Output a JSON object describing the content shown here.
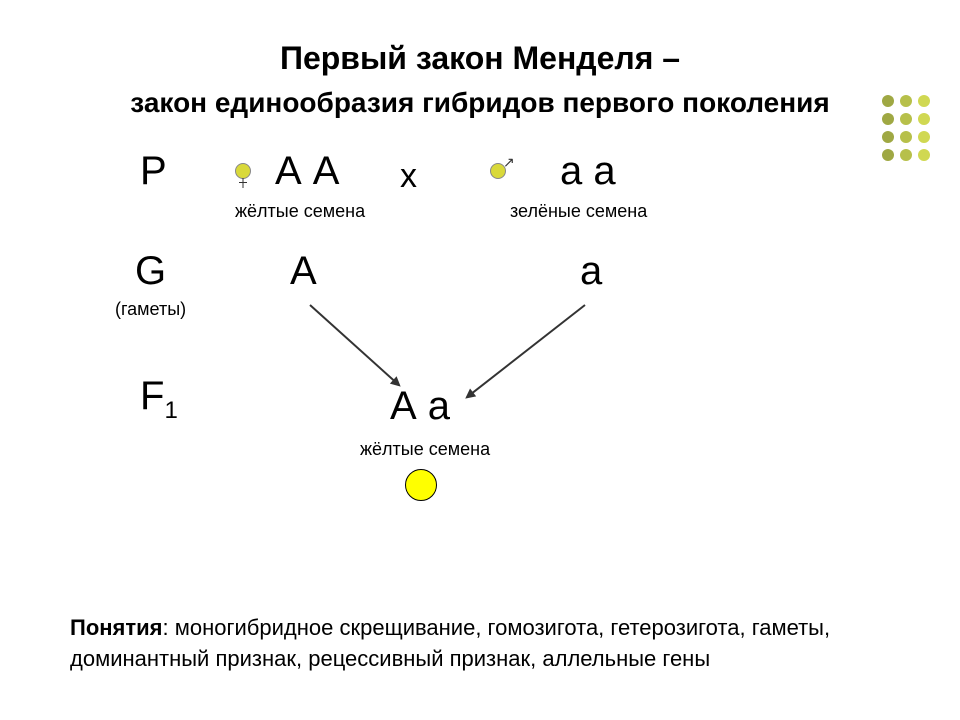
{
  "title": {
    "line1": "Первый закон Менделя –",
    "line2": "закон единообразия гибридов первого поколения"
  },
  "dot_pattern": {
    "colors": [
      "#9fa843",
      "#b7c04a",
      "#d0d852"
    ],
    "cols": 3,
    "rows": 4
  },
  "diagram": {
    "P_label": "P",
    "P_left_genotype": "А А",
    "cross_symbol": "х",
    "P_right_genotype": "а а",
    "P_left_caption": "жёлтые семена",
    "P_right_caption": "зелёные семена",
    "G_label": "G",
    "G_caption": "(гаметы)",
    "G_left": "А",
    "G_right": "а",
    "F_label_main": "F",
    "F_label_sub": "1",
    "F1_genotype": "А а",
    "F1_caption": "жёлтые семена",
    "seed_fill": "#d9d93a",
    "result_seed_fill": "#ffff00",
    "arrow_color": "#333333"
  },
  "concepts": {
    "label": "Понятия",
    "text": ": моногибридное скрещивание, гомозигота, гетерозигота, гаметы, доминантный признак, рецессивный признак, аллельные гены"
  }
}
